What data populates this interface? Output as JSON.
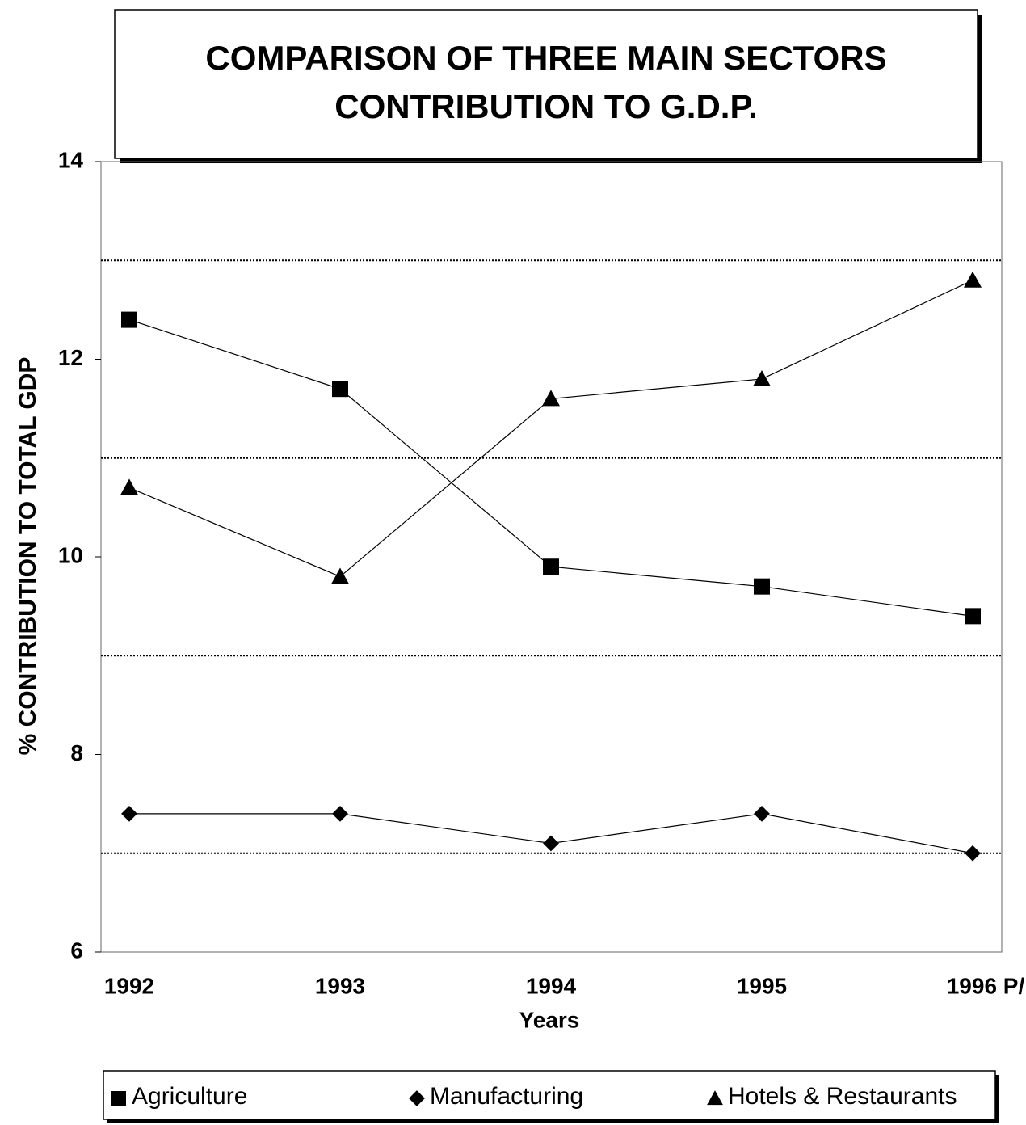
{
  "chart_data": {
    "type": "line",
    "title": [
      "COMPARISON OF THREE MAIN SECTORS",
      "CONTRIBUTION TO G.D.P."
    ],
    "x_label": "Years",
    "y_label": "% CONTRIBUTION TO TOTAL GDP",
    "categories": [
      "1992",
      "1993",
      "1994",
      "1995",
      "1996 P/"
    ],
    "series": [
      {
        "name": "Agriculture",
        "color": "#000000",
        "marker": "square",
        "values": [
          12.4,
          11.7,
          9.9,
          9.7,
          9.4
        ]
      },
      {
        "name": "Manufacturing",
        "color": "#000000",
        "marker": "diamond",
        "values": [
          7.4,
          7.4,
          7.1,
          7.4,
          7.0
        ]
      },
      {
        "name": "Hotels & Restaurants",
        "color": "#000000",
        "marker": "triangle",
        "values": [
          10.7,
          9.8,
          11.6,
          11.8,
          12.8
        ]
      }
    ],
    "ylim": [
      6,
      14
    ],
    "yticks": [
      6,
      8,
      10,
      12,
      14
    ],
    "grid_lines": [
      7,
      9,
      11,
      13
    ],
    "legend": "bottom"
  }
}
